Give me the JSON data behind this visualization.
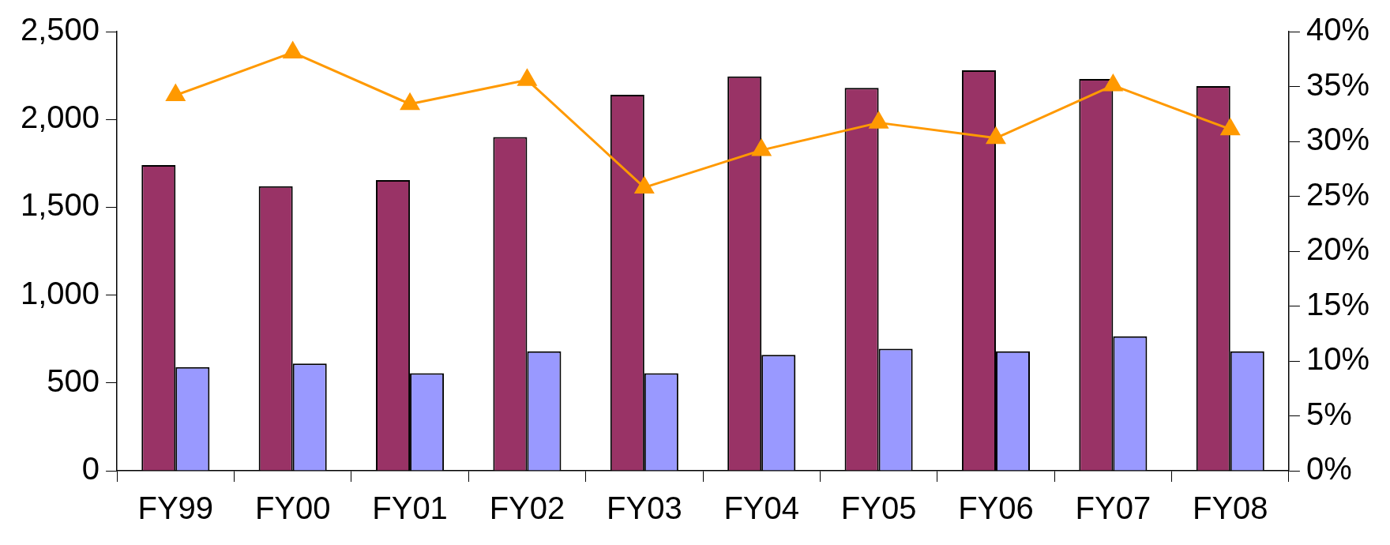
{
  "chart_data": {
    "type": "bar",
    "categories": [
      "FY99",
      "FY00",
      "FY01",
      "FY02",
      "FY03",
      "FY04",
      "FY05",
      "FY06",
      "FY07",
      "FY08"
    ],
    "series": [
      {
        "color": "#993366",
        "values": [
          1740,
          1620,
          1655,
          1900,
          2140,
          2245,
          2180,
          2280,
          2230,
          2190
        ]
      },
      {
        "color": "#9999ff",
        "values": [
          590,
          610,
          555,
          680,
          555,
          660,
          695,
          680,
          765,
          680
        ]
      },
      {
        "type": "line",
        "axis": "y2",
        "color": "#ff9900",
        "marker": "triangle",
        "values": [
          34.2,
          38.1,
          33.4,
          35.6,
          25.8,
          29.2,
          31.7,
          30.3,
          35.1,
          31.1
        ]
      }
    ],
    "ylim": [
      0,
      2500
    ],
    "yticks": [
      0,
      {
        "value": 500,
        "label": "500"
      },
      {
        "value": 1000,
        "label": "1,000"
      },
      {
        "value": 1500,
        "label": "1,500"
      },
      {
        "value": 2000,
        "label": "2,000"
      },
      {
        "value": 2500,
        "label": "2,500"
      }
    ],
    "y2lim": [
      0,
      40
    ],
    "y2ticks": [
      {
        "value": 0,
        "label": "0%"
      },
      {
        "value": 5,
        "label": "5%"
      },
      {
        "value": 10,
        "label": "10%"
      },
      {
        "value": 15,
        "label": "15%"
      },
      {
        "value": 20,
        "label": "20%"
      },
      {
        "value": 25,
        "label": "25%"
      },
      {
        "value": 30,
        "label": "30%"
      },
      {
        "value": 35,
        "label": "35%"
      },
      {
        "value": 40,
        "label": "40%"
      }
    ],
    "legend": false
  }
}
